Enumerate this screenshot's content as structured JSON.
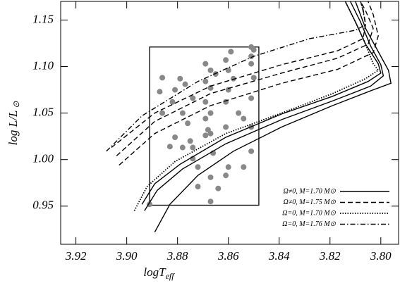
{
  "chart_data": {
    "type": "line",
    "xlabel": {
      "main": "logT",
      "sub": "eff"
    },
    "ylabel": {
      "main": "log L/L",
      "sub": "⊙"
    },
    "xlim": [
      3.926,
      3.793
    ],
    "ylim": [
      0.909,
      1.17
    ],
    "xticks": [
      3.92,
      {
        "value": 3.9,
        "label": "3.90"
      },
      3.88,
      3.86,
      3.84,
      3.82,
      {
        "value": 3.8,
        "label": "3.80"
      }
    ],
    "yticks": [
      0.95,
      {
        "value": 1.0,
        "label": "1.00"
      },
      1.05,
      {
        "value": 1.1,
        "label": "1.10"
      },
      1.15
    ],
    "legend": "lower right",
    "box": {
      "x": [
        3.891,
        3.848
      ],
      "y": [
        0.951,
        1.121
      ],
      "color": "#000000"
    },
    "points": {
      "color": "#888888",
      "x": [
        3.859,
        3.851,
        3.85,
        3.861,
        3.851,
        3.869,
        3.851,
        3.886,
        3.867,
        3.86,
        3.865,
        3.879,
        3.869,
        3.858,
        3.85,
        3.877,
        3.887,
        3.881,
        3.867,
        3.86,
        3.874,
        3.882,
        3.869,
        3.861,
        3.851,
        3.886,
        3.878,
        3.867,
        3.856,
        3.869,
        3.854,
        3.876,
        3.861,
        3.868,
        3.851,
        3.881,
        3.869,
        3.867,
        3.875,
        3.883,
        3.878,
        3.874,
        3.866,
        3.851,
        3.874,
        3.854,
        3.872,
        3.86,
        3.867,
        3.861,
        3.872,
        3.864,
        3.867,
        3.891
      ],
      "y": [
        1.116,
        1.121,
        1.118,
        1.107,
        1.111,
        1.103,
        1.103,
        1.088,
        1.096,
        1.096,
        1.092,
        1.087,
        1.084,
        1.087,
        1.088,
        1.081,
        1.073,
        1.075,
        1.077,
        1.075,
        1.066,
        1.062,
        1.062,
        1.062,
        1.066,
        1.05,
        1.05,
        1.05,
        1.05,
        1.044,
        1.044,
        1.039,
        1.035,
        1.032,
        1.035,
        1.024,
        1.026,
        1.028,
        1.02,
        1.014,
        1.013,
        1.013,
        1.007,
        1.009,
        1.001,
        0.992,
        0.992,
        0.992,
        0.981,
        0.983,
        0.971,
        0.969,
        0.955,
        0.952
      ]
    },
    "series": [
      {
        "name": "Ω≠0, M=1.70 M⊙",
        "color": "#000000",
        "dash": "solid",
        "x": [
          3.889,
          3.883,
          3.872,
          3.858,
          3.839,
          3.819,
          3.803,
          3.796,
          3.797,
          3.8,
          3.806,
          3.81,
          null,
          3.893,
          3.888,
          3.878,
          3.861,
          3.839,
          3.819,
          3.804,
          3.799,
          3.8,
          3.804,
          3.808,
          3.812,
          null,
          3.894,
          3.889,
          3.879,
          3.861,
          3.839,
          3.819,
          3.805,
          3.8,
          3.801,
          3.806,
          3.81,
          3.814
        ],
        "values": [
          0.922,
          0.952,
          0.983,
          1.009,
          1.035,
          1.058,
          1.075,
          1.082,
          1.096,
          1.111,
          1.141,
          1.17,
          null,
          0.945,
          0.967,
          0.99,
          1.017,
          1.043,
          1.063,
          1.079,
          1.09,
          1.102,
          1.122,
          1.148,
          1.17,
          null,
          0.952,
          0.974,
          0.995,
          1.024,
          1.049,
          1.068,
          1.084,
          1.093,
          1.103,
          1.124,
          1.148,
          1.17
        ]
      },
      {
        "name": "Ω≠0, M=1.75 M⊙",
        "color": "#000000",
        "dash": "dashed",
        "x": [
          3.903,
          3.889,
          3.867,
          3.839,
          3.817,
          3.803,
          3.801,
          3.803,
          3.805,
          null,
          3.904,
          3.889,
          3.867,
          3.839,
          3.817,
          3.805,
          3.803,
          3.806,
          3.808,
          null,
          3.906,
          3.889,
          3.867,
          3.839,
          3.817,
          3.807,
          3.806,
          3.807,
          3.808
        ],
        "values": [
          0.994,
          1.028,
          1.058,
          1.082,
          1.097,
          1.115,
          1.133,
          1.156,
          1.17,
          null,
          1.004,
          1.041,
          1.071,
          1.093,
          1.109,
          1.124,
          1.141,
          1.16,
          1.17,
          null,
          1.013,
          1.05,
          1.079,
          1.102,
          1.117,
          1.13,
          1.145,
          1.162,
          1.17
        ]
      },
      {
        "name": "Ω=0, M=1.70 M⊙",
        "color": "#000000",
        "dash": "dotted",
        "x": [
          3.897,
          3.892,
          3.881,
          3.861,
          3.839,
          3.819,
          3.806,
          3.801,
          3.803,
          3.806,
          3.81,
          3.814
        ],
        "values": [
          0.945,
          0.971,
          0.998,
          1.028,
          1.05,
          1.071,
          1.087,
          1.096,
          1.103,
          1.124,
          1.148,
          1.17
        ]
      },
      {
        "name": "Ω=0, M=1.76 M⊙",
        "color": "#000000",
        "dash": "dashdot",
        "x": [
          3.908,
          3.894,
          3.872,
          3.85,
          3.828,
          3.81,
          3.806,
          3.807,
          3.808
        ],
        "values": [
          1.009,
          1.047,
          1.084,
          1.111,
          1.13,
          1.139,
          1.145,
          1.16,
          1.17
        ]
      }
    ]
  }
}
